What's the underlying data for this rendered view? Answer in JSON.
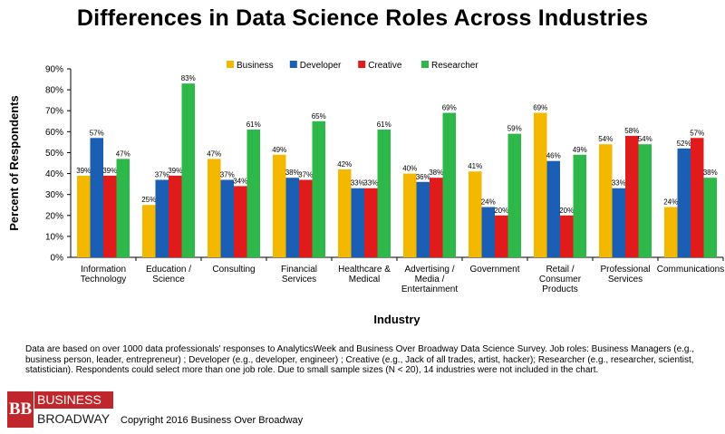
{
  "chart_data": {
    "type": "bar",
    "title": "Differences in Data Science Roles Across Industries",
    "xlabel": "Industry",
    "ylabel": "Percent of Respondents",
    "ylim": [
      0,
      90
    ],
    "yticks": [
      "0%",
      "10%",
      "20%",
      "30%",
      "40%",
      "50%",
      "60%",
      "70%",
      "80%",
      "90%"
    ],
    "grid": false,
    "legend_position": "top-center",
    "categories": [
      [
        "Information",
        "Technology"
      ],
      [
        "Education /",
        "Science"
      ],
      [
        "Consulting"
      ],
      [
        "Financial",
        "Services"
      ],
      [
        "Healthcare &",
        "Medical"
      ],
      [
        "Advertising /",
        "Media /",
        "Entertainment"
      ],
      [
        "Government"
      ],
      [
        "Retail /",
        "Consumer",
        "Products"
      ],
      [
        "Professional",
        "Services"
      ],
      [
        "Communications"
      ]
    ],
    "series": [
      {
        "name": "Business",
        "color": "#f5b800",
        "values": [
          39,
          25,
          47,
          49,
          42,
          40,
          41,
          69,
          54,
          24
        ]
      },
      {
        "name": "Developer",
        "color": "#1a5fb4",
        "values": [
          57,
          37,
          37,
          38,
          33,
          36,
          24,
          46,
          33,
          52
        ]
      },
      {
        "name": "Creative",
        "color": "#e01b1b",
        "values": [
          39,
          39,
          34,
          37,
          33,
          38,
          20,
          20,
          58,
          57
        ]
      },
      {
        "name": "Researcher",
        "color": "#2fb84a",
        "values": [
          47,
          83,
          61,
          65,
          61,
          69,
          59,
          49,
          54,
          38
        ]
      }
    ]
  },
  "footnote": "Data are based on over 1000 data professionals' responses to AnalyticsWeek and Business Over Broadway Data Science Survey. Job roles: Business Managers (e.g., business person, leader, entrepreneur) ; Developer (e.g., developer, engineer) ; Creative (e.g., Jack of all trades, artist, hacker); Researcher (e.g., researcher, scientist, statistician). Respondents could select more than one job role. Due to small sample sizes (N < 20), 14 industries were not included in the chart.",
  "logo": {
    "mark": "BB",
    "line1": "BUSINESS",
    "line2": "BROADWAY"
  },
  "copyright": "Copyright 2016 Business Over Broadway"
}
